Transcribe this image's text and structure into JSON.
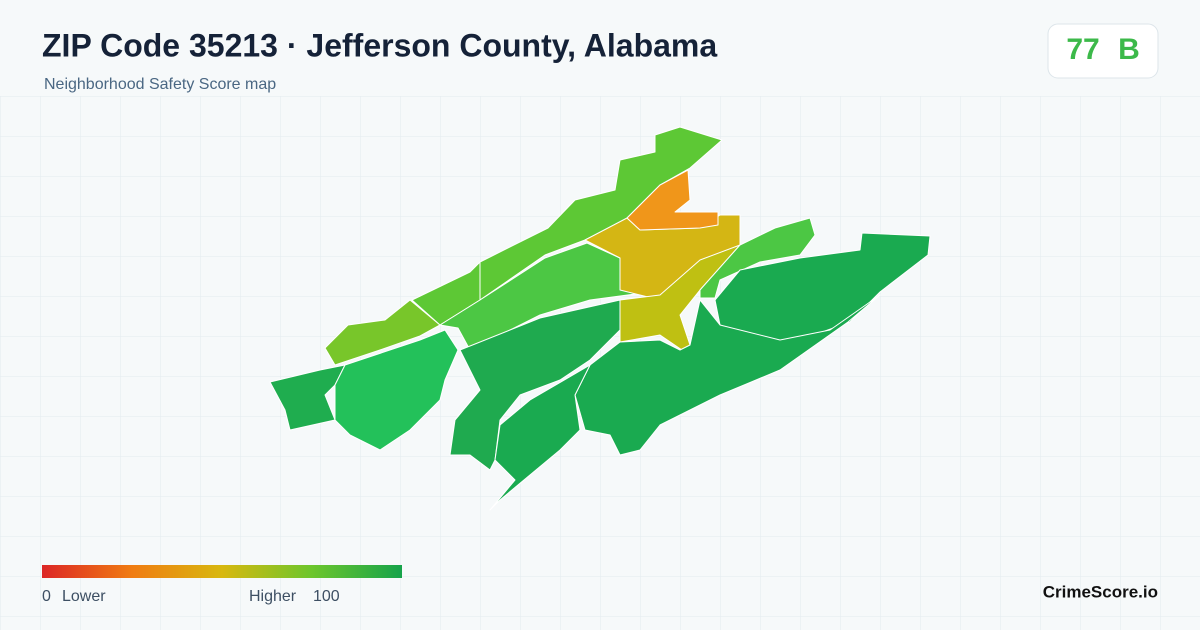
{
  "header": {
    "title": "ZIP Code 35213 · Jefferson County, Alabama",
    "subtitle": "Neighborhood Safety Score map"
  },
  "score": {
    "value": "77",
    "grade": "B"
  },
  "legend": {
    "min": "0",
    "min_label": "Lower",
    "max_label": "Higher",
    "max": "100"
  },
  "footer": {
    "brand": "CrimeScore.io"
  }
}
